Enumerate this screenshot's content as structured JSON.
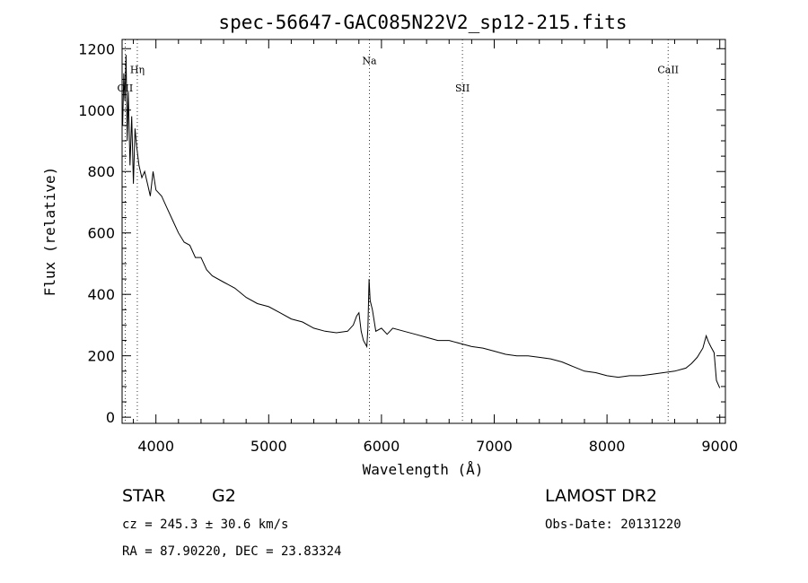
{
  "chart_data": {
    "type": "line",
    "title": "spec-56647-GAC085N22V2_sp12-215.fits",
    "xlabel": "Wavelength (Å)",
    "ylabel": "Flux (relative)",
    "xlim": [
      3700,
      9050
    ],
    "ylim": [
      -20,
      1230
    ],
    "xticks": [
      4000,
      5000,
      6000,
      7000,
      8000,
      9000
    ],
    "yticks": [
      0,
      200,
      400,
      600,
      800,
      1000,
      1200
    ],
    "grid": false,
    "spectral_lines": [
      {
        "label": "OII",
        "wavelength": 3727,
        "label_flux": 1060
      },
      {
        "label": "Hη",
        "wavelength": 3835,
        "label_flux": 1120
      },
      {
        "label": "Na",
        "wavelength": 5893,
        "label_flux": 1150
      },
      {
        "label": "SII",
        "wavelength": 6718,
        "label_flux": 1060
      },
      {
        "label": "CaII",
        "wavelength": 8542,
        "label_flux": 1120
      }
    ],
    "series": [
      {
        "x": [
          3705,
          3715,
          3725,
          3735,
          3745,
          3755,
          3770,
          3785,
          3800,
          3815,
          3830,
          3850,
          3875,
          3900,
          3925,
          3950,
          3975,
          4000,
          4050,
          4100,
          4150,
          4200,
          4250,
          4300,
          4350,
          4400,
          4450,
          4500,
          4600,
          4700,
          4800,
          4900,
          5000,
          5100,
          5200,
          5300,
          5400,
          5500,
          5600,
          5700,
          5750,
          5780,
          5800,
          5820,
          5840,
          5855,
          5870,
          5880,
          5890,
          5900,
          5920,
          5950,
          6000,
          6050,
          6100,
          6200,
          6300,
          6400,
          6500,
          6600,
          6700,
          6800,
          6900,
          7000,
          7100,
          7200,
          7300,
          7400,
          7500,
          7600,
          7700,
          7800,
          7900,
          8000,
          8100,
          8200,
          8300,
          8400,
          8500,
          8600,
          8700,
          8750,
          8800,
          8850,
          8880,
          8900,
          8920,
          8950,
          8970,
          9000
        ],
        "y": [
          950,
          1120,
          1030,
          1180,
          900,
          1060,
          820,
          980,
          760,
          940,
          880,
          820,
          780,
          800,
          760,
          720,
          800,
          740,
          720,
          680,
          640,
          600,
          570,
          560,
          520,
          520,
          480,
          460,
          440,
          420,
          390,
          370,
          360,
          340,
          320,
          310,
          290,
          280,
          275,
          280,
          300,
          330,
          340,
          280,
          250,
          240,
          230,
          290,
          450,
          380,
          350,
          280,
          290,
          270,
          290,
          280,
          270,
          260,
          250,
          250,
          240,
          230,
          225,
          215,
          205,
          200,
          200,
          195,
          190,
          180,
          165,
          150,
          145,
          135,
          130,
          135,
          135,
          140,
          145,
          150,
          160,
          175,
          195,
          225,
          265,
          245,
          230,
          210,
          120,
          95
        ]
      }
    ]
  },
  "info": {
    "object_type": "STAR",
    "subclass": "G2",
    "survey": "LAMOST DR2",
    "redshift": "cz = 245.3 ± 30.6 km/s",
    "obs_date": "Obs-Date: 20131220",
    "coords": "RA =  87.90220, DEC =  23.83324"
  }
}
